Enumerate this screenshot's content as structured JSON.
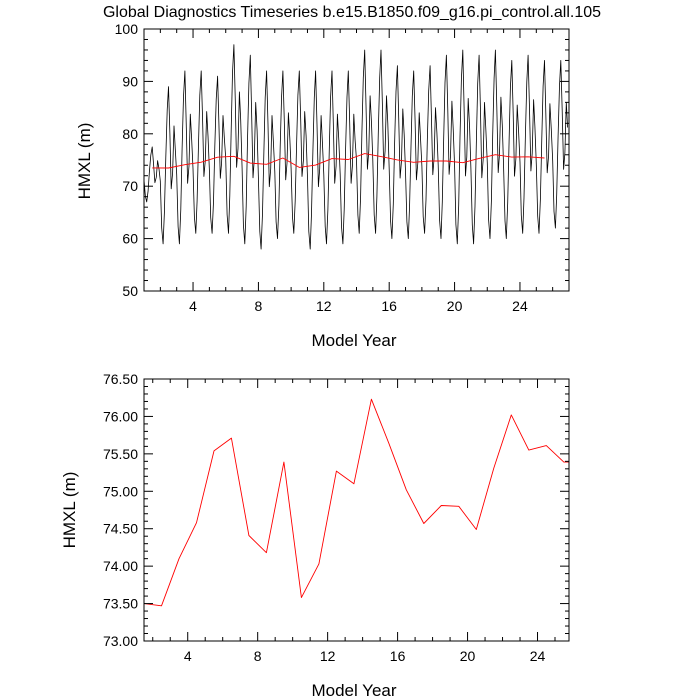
{
  "figure_title": "Global Diagnostics Timeseries b.e15.B1850.f09_g16.pi_control.all.105",
  "chart_data": [
    {
      "type": "line",
      "xlabel": "Model Year",
      "ylabel": "HMXL (m)",
      "xlim": [
        1,
        27
      ],
      "ylim": [
        50,
        100
      ],
      "x_ticks": [
        4,
        8,
        12,
        16,
        20,
        24
      ],
      "y_ticks": [
        50,
        60,
        70,
        80,
        90,
        100
      ],
      "y_tick_labels": [
        "50",
        "60",
        "70",
        "80",
        "90",
        "100"
      ],
      "series": [
        {
          "color": "#000000",
          "monthly": true,
          "start_year": 1.0,
          "annual_peaks": [
            77.5,
            89,
            92,
            92,
            91,
            97,
            95,
            92,
            92,
            92,
            92,
            92,
            92,
            96,
            96,
            93,
            92,
            93,
            95,
            96,
            95,
            96,
            94,
            95,
            94,
            94
          ],
          "annual_troughs": [
            67,
            59,
            59,
            61,
            61,
            61,
            59,
            58,
            60,
            61,
            58,
            59,
            59,
            61,
            61,
            60,
            60,
            61,
            60,
            59,
            59,
            60,
            60,
            61,
            61,
            62
          ]
        },
        {
          "color": "#ff0000",
          "x": [
            1.5,
            2.5,
            3.5,
            4.5,
            5.5,
            6.5,
            7.5,
            8.5,
            9.5,
            10.5,
            11.5,
            12.5,
            13.5,
            14.5,
            15.5,
            16.5,
            17.5,
            18.5,
            19.5,
            20.5,
            21.5,
            22.5,
            23.5,
            24.5,
            25.5
          ],
          "values": [
            73.5,
            73.47,
            74.1,
            74.58,
            75.54,
            75.71,
            74.41,
            74.18,
            75.39,
            73.58,
            74.03,
            75.27,
            75.1,
            76.23,
            75.64,
            75.02,
            74.57,
            74.81,
            74.8,
            74.49,
            75.31,
            76.02,
            75.55,
            75.61,
            75.39
          ]
        }
      ]
    },
    {
      "type": "line",
      "xlabel": "Model Year",
      "ylabel": "HMXL (m)",
      "xlim": [
        1.5,
        25.8
      ],
      "ylim": [
        73.0,
        76.5
      ],
      "x_ticks": [
        4,
        8,
        12,
        16,
        20,
        24
      ],
      "y_ticks": [
        73.0,
        73.5,
        74.0,
        74.5,
        75.0,
        75.5,
        76.0,
        76.5
      ],
      "y_tick_labels": [
        "73.00",
        "73.50",
        "74.00",
        "74.50",
        "75.00",
        "75.50",
        "76.00",
        "76.50"
      ],
      "series": [
        {
          "color": "#ff0000",
          "x": [
            1.5,
            2.5,
            3.5,
            4.5,
            5.5,
            6.5,
            7.5,
            8.5,
            9.5,
            10.5,
            11.5,
            12.5,
            13.5,
            14.5,
            15.5,
            16.5,
            17.5,
            18.5,
            19.5,
            20.5,
            21.5,
            22.5,
            23.5,
            24.5,
            25.5,
            25.8
          ],
          "values": [
            73.5,
            73.47,
            74.1,
            74.58,
            75.54,
            75.71,
            74.41,
            74.18,
            75.39,
            73.58,
            74.03,
            75.27,
            75.1,
            76.23,
            75.64,
            75.02,
            74.57,
            74.81,
            74.8,
            74.49,
            75.31,
            76.02,
            75.55,
            75.61,
            75.39,
            75.39
          ]
        }
      ]
    }
  ]
}
